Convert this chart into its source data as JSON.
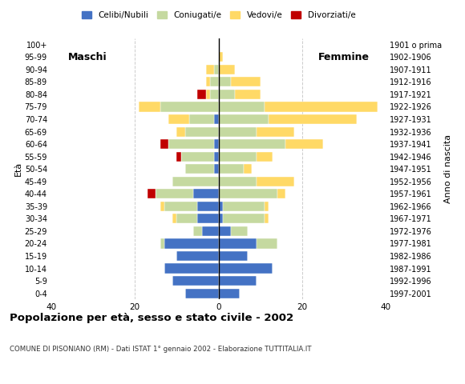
{
  "age_groups": [
    "0-4",
    "5-9",
    "10-14",
    "15-19",
    "20-24",
    "25-29",
    "30-34",
    "35-39",
    "40-44",
    "45-49",
    "50-54",
    "55-59",
    "60-64",
    "65-69",
    "70-74",
    "75-79",
    "80-84",
    "85-89",
    "90-94",
    "95-99",
    "100+"
  ],
  "birth_years": [
    "1997-2001",
    "1992-1996",
    "1987-1991",
    "1982-1986",
    "1977-1981",
    "1972-1976",
    "1967-1971",
    "1962-1966",
    "1957-1961",
    "1952-1956",
    "1947-1951",
    "1942-1946",
    "1937-1941",
    "1932-1936",
    "1927-1931",
    "1922-1926",
    "1917-1921",
    "1912-1916",
    "1907-1911",
    "1902-1906",
    "1901 o prima"
  ],
  "males": {
    "celibi": [
      8,
      11,
      13,
      10,
      13,
      4,
      5,
      5,
      6,
      0,
      1,
      1,
      1,
      0,
      1,
      0,
      0,
      0,
      0,
      0,
      0
    ],
    "coniugati": [
      0,
      0,
      0,
      0,
      1,
      2,
      5,
      8,
      9,
      11,
      7,
      8,
      11,
      8,
      6,
      14,
      2,
      2,
      1,
      0,
      0
    ],
    "vedovi": [
      0,
      0,
      0,
      0,
      0,
      0,
      1,
      1,
      0,
      0,
      0,
      0,
      0,
      2,
      5,
      5,
      1,
      1,
      2,
      0,
      0
    ],
    "divorziati": [
      0,
      0,
      0,
      0,
      0,
      0,
      0,
      0,
      2,
      0,
      0,
      1,
      2,
      0,
      0,
      0,
      2,
      0,
      0,
      0,
      0
    ]
  },
  "females": {
    "nubili": [
      5,
      9,
      13,
      7,
      9,
      3,
      1,
      1,
      0,
      0,
      0,
      0,
      0,
      0,
      0,
      0,
      0,
      0,
      0,
      0,
      0
    ],
    "coniugate": [
      0,
      0,
      0,
      0,
      5,
      4,
      10,
      10,
      14,
      9,
      6,
      9,
      16,
      9,
      12,
      11,
      4,
      3,
      0,
      0,
      0
    ],
    "vedove": [
      0,
      0,
      0,
      0,
      0,
      0,
      1,
      1,
      2,
      9,
      2,
      4,
      9,
      9,
      21,
      27,
      6,
      7,
      4,
      1,
      0
    ],
    "divorziate": [
      0,
      0,
      0,
      0,
      0,
      0,
      0,
      0,
      0,
      0,
      0,
      0,
      0,
      0,
      0,
      0,
      0,
      0,
      0,
      0,
      0
    ]
  },
  "colors": {
    "celibi_nubili": "#4472c4",
    "coniugati_e": "#c5d9a0",
    "vedovi_e": "#ffd966",
    "divorziati_e": "#c00000"
  },
  "title": "Popolazione per età, sesso e stato civile - 2002",
  "subtitle": "COMUNE DI PISONIANO (RM) - Dati ISTAT 1° gennaio 2002 - Elaborazione TUTTITALIA.IT",
  "xlabel_left": "Maschi",
  "xlabel_right": "Femmine",
  "ylabel_left": "Età",
  "ylabel_right": "Anno di nascita",
  "xlim": 40,
  "legend_labels": [
    "Celibi/Nubili",
    "Coniugati/e",
    "Vedovi/e",
    "Divorziati/e"
  ],
  "bg_color": "#ffffff",
  "grid_color": "#cccccc"
}
